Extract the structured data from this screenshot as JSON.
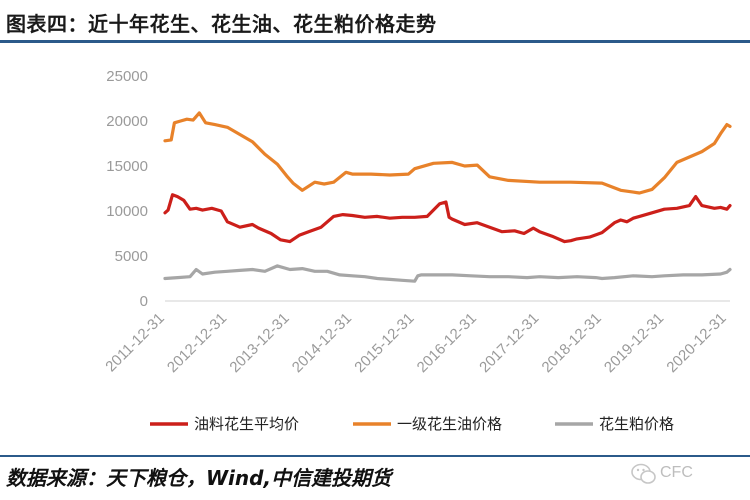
{
  "chart_data": {
    "type": "line",
    "title": "图表四：近十年花生、花生油、花生粕价格走势",
    "source": "数据来源：天下粮仓，Wind,中信建投期货",
    "watermark": "CFC",
    "ylim": [
      0,
      25000
    ],
    "y_ticks": [
      "0",
      "5000",
      "10000",
      "15000",
      "20000",
      "25000"
    ],
    "y_tick_values": [
      0,
      5000,
      10000,
      15000,
      20000,
      25000
    ],
    "x_ticks": [
      "2011-12-31",
      "2012-12-31",
      "2013-12-31",
      "2014-12-31",
      "2015-12-31",
      "2016-12-31",
      "2017-12-31",
      "2018-12-31",
      "2019-12-31",
      "2020-12-31"
    ],
    "x_tick_values": [
      2012.0,
      2013.0,
      2014.0,
      2015.0,
      2016.0,
      2017.0,
      2018.0,
      2019.0,
      2020.0,
      2021.0
    ],
    "xlim": [
      2012.0,
      2021.05
    ],
    "grid": false,
    "legend_position": "bottom",
    "series": [
      {
        "name": "油料花生平均价",
        "color": "#cc1f1a",
        "x": [
          2012.0,
          2012.05,
          2012.12,
          2012.2,
          2012.3,
          2012.4,
          2012.5,
          2012.6,
          2012.75,
          2012.9,
          2013.0,
          2013.2,
          2013.4,
          2013.5,
          2013.7,
          2013.85,
          2014.0,
          2014.15,
          2014.3,
          2014.5,
          2014.7,
          2014.85,
          2015.0,
          2015.2,
          2015.4,
          2015.6,
          2015.8,
          2016.0,
          2016.2,
          2016.4,
          2016.5,
          2016.55,
          2016.6,
          2016.8,
          2017.0,
          2017.2,
          2017.4,
          2017.6,
          2017.75,
          2017.9,
          2018.0,
          2018.2,
          2018.4,
          2018.5,
          2018.6,
          2018.8,
          2019.0,
          2019.2,
          2019.3,
          2019.4,
          2019.5,
          2019.6,
          2019.8,
          2020.0,
          2020.2,
          2020.4,
          2020.5,
          2020.6,
          2020.8,
          2020.9,
          2021.0,
          2021.05
        ],
        "values": [
          9800,
          10100,
          11800,
          11600,
          11200,
          10200,
          10300,
          10100,
          10300,
          10000,
          8800,
          8200,
          8500,
          8100,
          7500,
          6800,
          6600,
          7300,
          7700,
          8200,
          9400,
          9600,
          9500,
          9300,
          9400,
          9200,
          9300,
          9300,
          9400,
          10800,
          11000,
          9300,
          9100,
          8500,
          8700,
          8200,
          7700,
          7800,
          7500,
          8100,
          7700,
          7200,
          6600,
          6700,
          6900,
          7100,
          7600,
          8700,
          9000,
          8800,
          9200,
          9400,
          9800,
          10200,
          10300,
          10600,
          11600,
          10600,
          10300,
          10400,
          10200,
          10600
        ]
      },
      {
        "name": "一级花生油价格",
        "color": "#e8822a",
        "x": [
          2012.0,
          2012.1,
          2012.15,
          2012.25,
          2012.35,
          2012.45,
          2012.55,
          2012.65,
          2012.8,
          2013.0,
          2013.2,
          2013.4,
          2013.6,
          2013.8,
          2013.95,
          2014.05,
          2014.2,
          2014.4,
          2014.55,
          2014.7,
          2014.9,
          2015.0,
          2015.3,
          2015.6,
          2015.9,
          2016.0,
          2016.3,
          2016.6,
          2016.8,
          2017.0,
          2017.2,
          2017.5,
          2018.0,
          2018.5,
          2019.0,
          2019.3,
          2019.5,
          2019.6,
          2019.8,
          2020.0,
          2020.2,
          2020.4,
          2020.6,
          2020.8,
          2020.9,
          2021.0,
          2021.05
        ],
        "values": [
          17800,
          17900,
          19800,
          20000,
          20200,
          20100,
          20900,
          19800,
          19600,
          19300,
          18500,
          17700,
          16300,
          15200,
          13900,
          13100,
          12300,
          13200,
          13000,
          13200,
          14300,
          14100,
          14100,
          14000,
          14100,
          14700,
          15300,
          15400,
          15000,
          15100,
          13800,
          13400,
          13200,
          13200,
          13100,
          12300,
          12100,
          12000,
          12400,
          13700,
          15400,
          16000,
          16600,
          17500,
          18600,
          19600,
          19400
        ]
      },
      {
        "name": "花生粕价格",
        "color": "#a6a6a6",
        "x": [
          2012.0,
          2012.2,
          2012.4,
          2012.5,
          2012.6,
          2012.8,
          2013.0,
          2013.2,
          2013.4,
          2013.6,
          2013.8,
          2014.0,
          2014.2,
          2014.4,
          2014.6,
          2014.8,
          2015.0,
          2015.2,
          2015.4,
          2015.6,
          2015.8,
          2016.0,
          2016.05,
          2016.1,
          2016.3,
          2016.6,
          2016.9,
          2017.2,
          2017.5,
          2017.8,
          2018.0,
          2018.3,
          2018.6,
          2018.9,
          2019.0,
          2019.2,
          2019.5,
          2019.8,
          2020.0,
          2020.3,
          2020.6,
          2020.9,
          2021.0,
          2021.05
        ],
        "values": [
          2500,
          2600,
          2700,
          3500,
          3000,
          3200,
          3300,
          3400,
          3500,
          3300,
          3900,
          3500,
          3600,
          3300,
          3300,
          2900,
          2800,
          2700,
          2500,
          2400,
          2300,
          2200,
          2800,
          2900,
          2900,
          2900,
          2800,
          2700,
          2700,
          2600,
          2700,
          2600,
          2700,
          2600,
          2500,
          2600,
          2800,
          2700,
          2800,
          2900,
          2900,
          3000,
          3200,
          3500
        ]
      }
    ]
  }
}
